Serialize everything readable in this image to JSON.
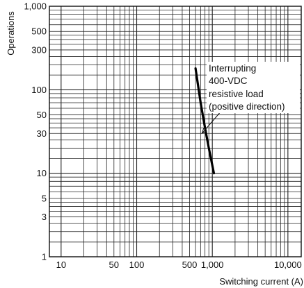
{
  "chart_data": {
    "type": "line",
    "xlabel": "Switching current (A)",
    "ylabel": "Operations",
    "x_scale": "log",
    "y_scale": "log",
    "xlim": [
      7,
      15000
    ],
    "ylim": [
      1,
      1000
    ],
    "grid": true,
    "x_tick_labels": [
      {
        "value": 10,
        "label": "10"
      },
      {
        "value": 50,
        "label": "50"
      },
      {
        "value": 100,
        "label": "100"
      },
      {
        "value": 500,
        "label": "500"
      },
      {
        "value": 1000,
        "label": "1,000"
      },
      {
        "value": 10000,
        "label": "10,000"
      }
    ],
    "y_tick_labels": [
      {
        "value": 1,
        "label": "1"
      },
      {
        "value": 3,
        "label": "3"
      },
      {
        "value": 5,
        "label": "5"
      },
      {
        "value": 10,
        "label": "10"
      },
      {
        "value": 30,
        "label": "30"
      },
      {
        "value": 50,
        "label": "50"
      },
      {
        "value": 100,
        "label": "100"
      },
      {
        "value": 300,
        "label": "300"
      },
      {
        "value": 500,
        "label": "500"
      },
      {
        "value": 1000,
        "label": "1,000"
      }
    ],
    "series": [
      {
        "x": [
          600,
          700,
          800,
          900,
          1050
        ],
        "y": [
          180,
          70,
          35,
          20,
          10
        ]
      }
    ],
    "annotation": {
      "lines": [
        "Interrupting",
        "400-VDC",
        "resistive load",
        "(positive direction)"
      ],
      "points_to": {
        "x": 730,
        "y": 30
      }
    },
    "colors": {
      "grid": "#222222",
      "curve": "#000000",
      "text": "#111111"
    }
  }
}
